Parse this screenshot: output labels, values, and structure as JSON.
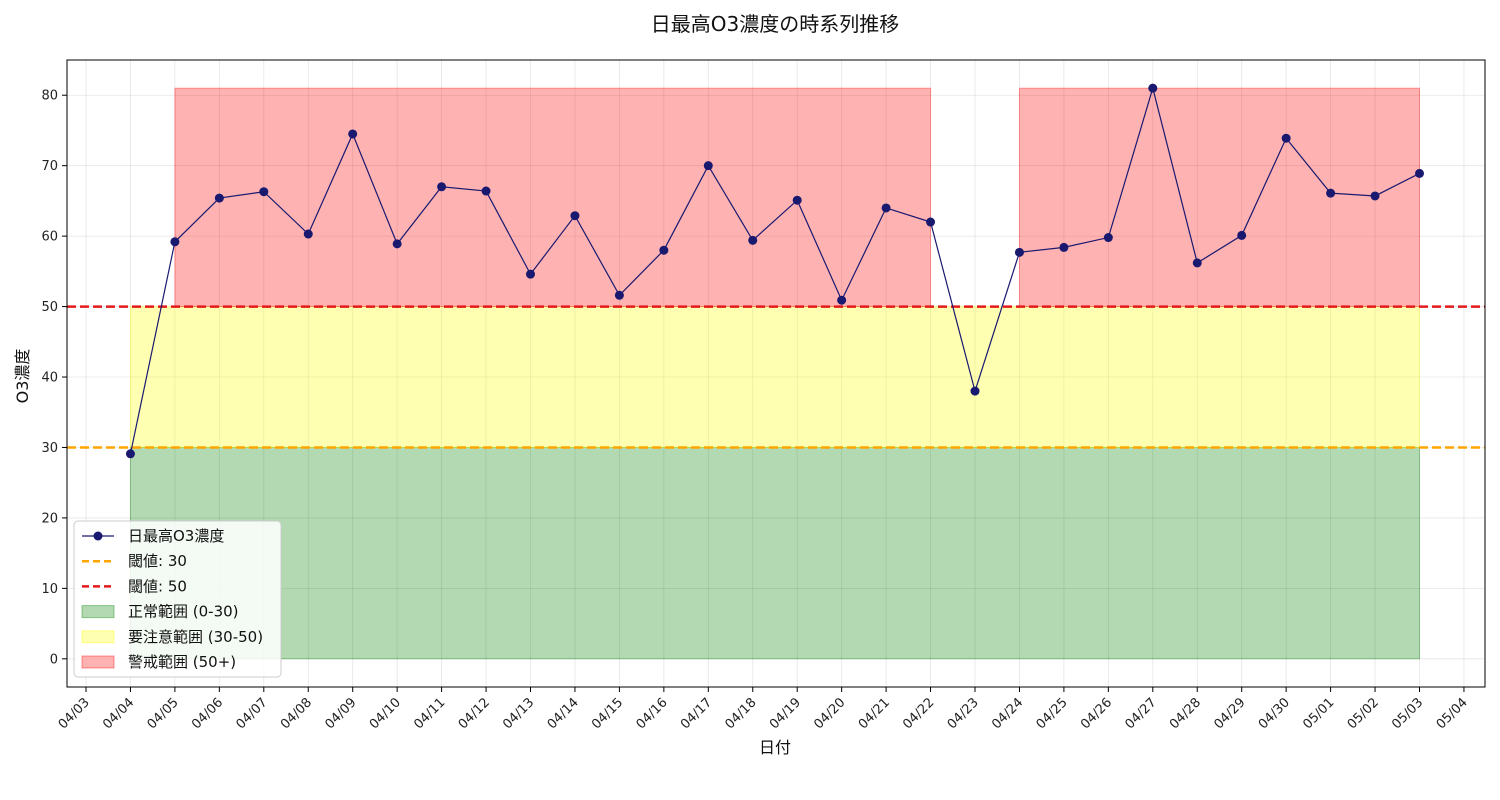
{
  "chart_data": {
    "type": "line",
    "title": "日最高O3濃度の時系列推移",
    "xlabel": "日付",
    "ylabel": "O3濃度",
    "ylim": [
      -4,
      85
    ],
    "yticks": [
      0,
      10,
      20,
      30,
      40,
      50,
      60,
      70,
      80
    ],
    "grid": true,
    "legend_position": "lower-left",
    "x_tick_labels": [
      "04/03",
      "04/04",
      "04/05",
      "04/06",
      "04/07",
      "04/08",
      "04/09",
      "04/10",
      "04/11",
      "04/12",
      "04/13",
      "04/14",
      "04/15",
      "04/16",
      "04/17",
      "04/18",
      "04/19",
      "04/20",
      "04/21",
      "04/22",
      "04/23",
      "04/24",
      "04/25",
      "04/26",
      "04/27",
      "04/28",
      "04/29",
      "04/30",
      "05/01",
      "05/02",
      "05/03",
      "05/04"
    ],
    "categories": [
      "04/04",
      "04/05",
      "04/06",
      "04/07",
      "04/08",
      "04/09",
      "04/10",
      "04/11",
      "04/12",
      "04/13",
      "04/14",
      "04/15",
      "04/16",
      "04/17",
      "04/18",
      "04/19",
      "04/20",
      "04/21",
      "04/22",
      "04/23",
      "04/24",
      "04/25",
      "04/26",
      "04/27",
      "04/28",
      "04/29",
      "04/30",
      "05/01",
      "05/02",
      "05/03"
    ],
    "series": [
      {
        "name": "日最高O3濃度",
        "color": "#191970",
        "values": [
          29.1,
          59.2,
          65.4,
          66.3,
          60.3,
          74.5,
          58.9,
          67.0,
          66.4,
          54.6,
          62.9,
          51.6,
          58.0,
          70.0,
          59.4,
          65.1,
          50.9,
          64.0,
          62.0,
          38.0,
          57.7,
          58.4,
          59.8,
          81.0,
          56.2,
          60.1,
          73.9,
          66.1,
          65.7,
          68.9
        ]
      }
    ],
    "thresholds": [
      {
        "label": "閾値: 30",
        "value": 30,
        "color": "#ffa500"
      },
      {
        "label": "閾値: 50",
        "value": 50,
        "color": "#e31a1c"
      }
    ],
    "bands": [
      {
        "label": "正常範囲 (0-30)",
        "color": "#008000",
        "from": 0,
        "to": 30,
        "start": "04/04",
        "end": "05/03"
      },
      {
        "label": "要注意範囲 (30-50)",
        "color": "#ffff00",
        "from": 30,
        "to": 50,
        "start": "04/04",
        "end": "05/03"
      },
      {
        "label": "警戒範囲 (50+)",
        "color": "#ff0000",
        "from": 50,
        "to": 81,
        "ranges": [
          [
            "04/05",
            "04/22"
          ],
          [
            "04/24",
            "05/03"
          ]
        ]
      }
    ]
  }
}
